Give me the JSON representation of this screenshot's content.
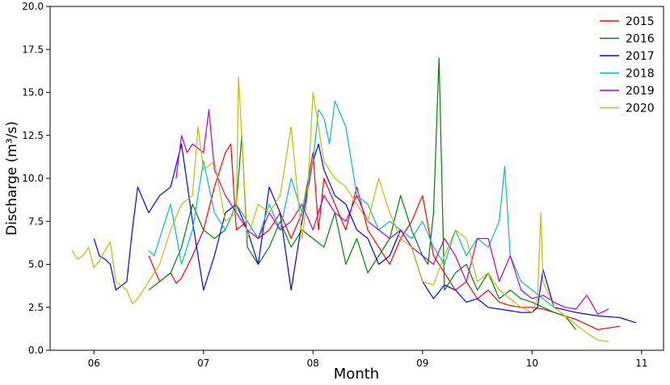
{
  "chart_data": {
    "type": "line",
    "title": "",
    "xlabel": "Month",
    "ylabel": "Discharge (m³/s)",
    "xlim": [
      5.6,
      11.2
    ],
    "ylim": [
      0,
      20
    ],
    "x_ticks": [
      6,
      7,
      8,
      9,
      10,
      11
    ],
    "x_tick_labels": [
      "06",
      "07",
      "08",
      "09",
      "10",
      "11"
    ],
    "y_ticks": [
      0,
      2.5,
      5,
      7.5,
      10,
      12.5,
      15,
      17.5,
      20
    ],
    "y_tick_labels": [
      "0.0",
      "2.5",
      "5.0",
      "7.5",
      "10.0",
      "12.5",
      "15.0",
      "17.5",
      "20.0"
    ],
    "grid": false,
    "legend_position": "top-right",
    "series": [
      {
        "name": "2015",
        "color": "#ff0000",
        "x": [
          6.5,
          6.6,
          6.7,
          6.75,
          6.8,
          6.9,
          7.0,
          7.1,
          7.2,
          7.25,
          7.3,
          7.4,
          7.5,
          7.6,
          7.7,
          7.8,
          7.9,
          8.0,
          8.05,
          8.1,
          8.2,
          8.3,
          8.4,
          8.5,
          8.6,
          8.7,
          8.8,
          8.9,
          9.0,
          9.1,
          9.2,
          9.3,
          9.4,
          9.5,
          9.6,
          9.7,
          9.8,
          9.9,
          10.0,
          10.1,
          10.2,
          10.3,
          10.4,
          10.5,
          10.6,
          10.7,
          10.8
        ],
        "values": [
          5.5,
          4.0,
          4.5,
          3.9,
          4.2,
          5.5,
          7.0,
          9.5,
          11.5,
          12.0,
          7.0,
          7.5,
          6.5,
          7.0,
          8.0,
          6.5,
          8.0,
          11.5,
          7.0,
          10.0,
          8.5,
          7.0,
          9.5,
          7.0,
          6.0,
          5.0,
          6.5,
          7.5,
          9.0,
          5.5,
          4.5,
          3.5,
          4.0,
          3.0,
          3.5,
          2.8,
          2.6,
          2.5,
          2.5,
          2.4,
          2.2,
          2.0,
          1.8,
          1.5,
          1.2,
          1.3,
          1.4
        ]
      },
      {
        "name": "2016",
        "color": "#008000",
        "x": [
          6.5,
          6.6,
          6.7,
          6.8,
          6.9,
          7.0,
          7.1,
          7.2,
          7.3,
          7.35,
          7.4,
          7.5,
          7.6,
          7.7,
          7.8,
          7.9,
          8.0,
          8.1,
          8.2,
          8.3,
          8.4,
          8.5,
          8.6,
          8.7,
          8.8,
          8.9,
          9.0,
          9.05,
          9.1,
          9.15,
          9.2,
          9.3,
          9.4,
          9.5,
          9.6,
          9.7,
          9.8,
          9.9,
          10.0,
          10.1,
          10.2,
          10.3,
          10.4
        ],
        "values": [
          3.5,
          4.0,
          4.5,
          6.0,
          8.5,
          7.0,
          6.5,
          7.0,
          8.5,
          12.5,
          6.0,
          5.0,
          6.0,
          7.5,
          6.0,
          7.0,
          6.5,
          6.0,
          8.0,
          5.0,
          6.5,
          4.5,
          5.5,
          6.5,
          9.0,
          7.0,
          5.5,
          5.0,
          8.0,
          17.0,
          3.5,
          4.5,
          5.0,
          3.5,
          4.5,
          3.0,
          3.5,
          3.0,
          2.8,
          2.5,
          2.2,
          2.0,
          1.2
        ]
      },
      {
        "name": "2017",
        "color": "#0000ff",
        "x": [
          6.0,
          6.05,
          6.1,
          6.15,
          6.2,
          6.3,
          6.35,
          6.4,
          6.5,
          6.6,
          6.7,
          6.8,
          6.9,
          7.0,
          7.1,
          7.2,
          7.3,
          7.4,
          7.5,
          7.6,
          7.7,
          7.8,
          7.9,
          8.0,
          8.05,
          8.1,
          8.2,
          8.3,
          8.4,
          8.5,
          8.6,
          8.7,
          8.8,
          8.9,
          9.0,
          9.1,
          9.2,
          9.3,
          9.4,
          9.5,
          9.6,
          9.7,
          9.8,
          9.9,
          10.0,
          10.05,
          10.1,
          10.2,
          10.4,
          10.6,
          10.8,
          10.95
        ],
        "values": [
          6.5,
          5.5,
          5.3,
          5.0,
          3.5,
          4.0,
          7.0,
          9.5,
          8.0,
          9.0,
          9.5,
          12.0,
          7.5,
          3.5,
          5.5,
          8.0,
          8.5,
          7.0,
          5.0,
          9.5,
          8.0,
          3.5,
          7.5,
          11.0,
          12.0,
          10.5,
          9.0,
          8.5,
          7.0,
          6.5,
          5.0,
          5.5,
          7.0,
          6.0,
          4.0,
          3.0,
          3.8,
          3.5,
          2.8,
          3.0,
          2.5,
          2.4,
          2.3,
          2.2,
          2.2,
          2.5,
          4.7,
          2.5,
          2.2,
          2.0,
          1.9,
          1.6
        ]
      },
      {
        "name": "2018",
        "color": "#00bfbf",
        "x": [
          6.5,
          6.55,
          6.6,
          6.7,
          6.8,
          6.9,
          7.0,
          7.1,
          7.2,
          7.3,
          7.4,
          7.5,
          7.6,
          7.7,
          7.8,
          7.9,
          8.0,
          8.05,
          8.1,
          8.15,
          8.2,
          8.3,
          8.4,
          8.5,
          8.6,
          8.7,
          8.8,
          8.9,
          9.0,
          9.1,
          9.2,
          9.3,
          9.4,
          9.5,
          9.6,
          9.7,
          9.75,
          9.8,
          9.9,
          10.0,
          10.1,
          10.2
        ],
        "values": [
          5.8,
          5.5,
          6.5,
          8.5,
          5.0,
          7.0,
          11.0,
          8.0,
          7.0,
          8.5,
          7.5,
          6.5,
          8.5,
          7.0,
          10.0,
          8.0,
          11.0,
          14.0,
          13.5,
          12.0,
          14.5,
          13.0,
          9.0,
          8.5,
          7.0,
          7.5,
          7.0,
          6.5,
          7.5,
          6.0,
          5.0,
          7.0,
          5.5,
          6.5,
          6.0,
          7.5,
          10.7,
          5.5,
          4.0,
          3.5,
          3.0,
          2.5
        ]
      },
      {
        "name": "2019",
        "color": "#bf00bf",
        "x": [
          6.75,
          6.8,
          6.85,
          6.9,
          7.0,
          7.05,
          7.1,
          7.2,
          7.3,
          7.4,
          7.5,
          7.6,
          7.7,
          7.8,
          7.9,
          8.0,
          8.1,
          8.2,
          8.3,
          8.4,
          8.5,
          8.6,
          8.7,
          8.8,
          8.9,
          9.0,
          9.1,
          9.2,
          9.3,
          9.4,
          9.5,
          9.6,
          9.7,
          9.8,
          9.9,
          10.0,
          10.1,
          10.2,
          10.3,
          10.4,
          10.5,
          10.6,
          10.7
        ],
        "values": [
          10.0,
          12.5,
          11.5,
          12.0,
          11.5,
          14.0,
          10.5,
          9.0,
          8.0,
          7.0,
          6.5,
          8.0,
          7.0,
          7.5,
          8.5,
          7.0,
          9.0,
          8.0,
          7.5,
          9.0,
          7.5,
          7.0,
          6.5,
          7.0,
          6.0,
          5.5,
          5.0,
          6.5,
          5.5,
          4.0,
          6.5,
          6.5,
          4.0,
          5.5,
          3.5,
          3.0,
          3.2,
          2.8,
          2.5,
          2.4,
          3.2,
          2.1,
          2.4
        ]
      },
      {
        "name": "2020",
        "color": "#bfbf00",
        "x": [
          5.8,
          5.85,
          5.9,
          5.95,
          6.0,
          6.05,
          6.1,
          6.15,
          6.2,
          6.3,
          6.35,
          6.4,
          6.5,
          6.6,
          6.7,
          6.8,
          6.9,
          6.95,
          7.0,
          7.1,
          7.2,
          7.3,
          7.32,
          7.4,
          7.5,
          7.6,
          7.7,
          7.8,
          7.9,
          7.95,
          8.0,
          8.1,
          8.2,
          8.3,
          8.4,
          8.5,
          8.6,
          8.7,
          8.8,
          8.9,
          9.0,
          9.1,
          9.2,
          9.3,
          9.4,
          9.5,
          9.6,
          9.7,
          9.8,
          9.9,
          10.0,
          10.05,
          10.08,
          10.1,
          10.2,
          10.3,
          10.4,
          10.5,
          10.6,
          10.7
        ],
        "values": [
          5.8,
          5.3,
          5.5,
          6.0,
          4.8,
          5.2,
          5.8,
          6.3,
          4.0,
          3.5,
          2.7,
          3.0,
          4.0,
          5.0,
          7.0,
          8.5,
          9.0,
          13.0,
          10.5,
          11.0,
          7.5,
          8.0,
          15.9,
          6.5,
          8.5,
          8.0,
          9.0,
          13.0,
          6.5,
          9.0,
          15.0,
          11.0,
          10.0,
          9.5,
          8.5,
          7.5,
          10.0,
          8.0,
          6.5,
          6.0,
          4.0,
          3.8,
          5.5,
          7.0,
          6.5,
          4.0,
          4.5,
          3.5,
          3.0,
          2.5,
          2.2,
          3.0,
          8.0,
          4.0,
          2.5,
          2.0,
          1.5,
          1.0,
          0.6,
          0.5
        ]
      }
    ]
  }
}
